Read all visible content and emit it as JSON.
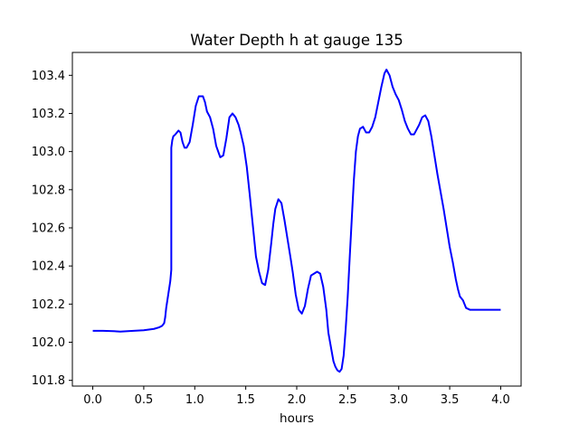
{
  "chart_data": {
    "type": "line",
    "title": "Water Depth h at gauge 135",
    "xlabel": "hours",
    "ylabel": "",
    "xlim": [
      -0.2,
      4.2
    ],
    "ylim": [
      101.77,
      103.52
    ],
    "xticks": [
      0.0,
      0.5,
      1.0,
      1.5,
      2.0,
      2.5,
      3.0,
      3.5,
      4.0
    ],
    "xtick_labels": [
      "0.0",
      "0.5",
      "1.0",
      "1.5",
      "2.0",
      "2.5",
      "3.0",
      "3.5",
      "4.0"
    ],
    "yticks": [
      101.8,
      102.0,
      102.2,
      102.4,
      102.6,
      102.8,
      103.0,
      103.2,
      103.4
    ],
    "ytick_labels": [
      "101.8",
      "102.0",
      "102.2",
      "102.4",
      "102.6",
      "102.8",
      "103.0",
      "103.2",
      "103.4"
    ],
    "grid": false,
    "legend": "none",
    "series": [
      {
        "color": "#0000ff",
        "x": [
          0.0,
          0.1,
          0.2,
          0.27,
          0.4,
          0.5,
          0.6,
          0.65,
          0.68,
          0.7,
          0.71,
          0.72,
          0.74,
          0.76,
          0.77,
          0.77,
          0.78,
          0.79,
          0.81,
          0.84,
          0.86,
          0.88,
          0.9,
          0.92,
          0.95,
          0.98,
          1.01,
          1.04,
          1.08,
          1.1,
          1.12,
          1.15,
          1.18,
          1.21,
          1.25,
          1.28,
          1.31,
          1.34,
          1.37,
          1.4,
          1.43,
          1.45,
          1.48,
          1.51,
          1.54,
          1.57,
          1.6,
          1.63,
          1.66,
          1.69,
          1.72,
          1.75,
          1.77,
          1.79,
          1.82,
          1.85,
          1.88,
          1.91,
          1.94,
          1.96,
          1.99,
          2.02,
          2.05,
          2.08,
          2.11,
          2.14,
          2.17,
          2.2,
          2.23,
          2.26,
          2.29,
          2.31,
          2.34,
          2.36,
          2.38,
          2.4,
          2.42,
          2.44,
          2.46,
          2.48,
          2.5,
          2.52,
          2.54,
          2.56,
          2.58,
          2.6,
          2.62,
          2.65,
          2.68,
          2.71,
          2.74,
          2.77,
          2.8,
          2.83,
          2.86,
          2.88,
          2.91,
          2.94,
          2.97,
          3.0,
          3.03,
          3.06,
          3.09,
          3.12,
          3.15,
          3.17,
          3.2,
          3.23,
          3.26,
          3.29,
          3.32,
          3.35,
          3.38,
          3.41,
          3.44,
          3.47,
          3.5,
          3.53,
          3.56,
          3.58,
          3.6,
          3.63,
          3.66,
          3.7,
          3.74,
          3.78,
          3.82,
          3.86,
          3.9,
          3.93,
          3.96,
          3.98,
          4.0
        ],
        "y": [
          102.06,
          102.06,
          102.058,
          102.056,
          102.06,
          102.063,
          102.07,
          102.078,
          102.086,
          102.1,
          102.13,
          102.18,
          102.25,
          102.32,
          102.38,
          103.02,
          103.06,
          103.08,
          103.09,
          103.11,
          103.1,
          103.05,
          103.02,
          103.02,
          103.05,
          103.14,
          103.24,
          103.29,
          103.29,
          103.26,
          103.21,
          103.18,
          103.12,
          103.03,
          102.97,
          102.98,
          103.07,
          103.18,
          103.2,
          103.18,
          103.14,
          103.1,
          103.03,
          102.92,
          102.77,
          102.61,
          102.45,
          102.37,
          102.31,
          102.3,
          102.38,
          102.52,
          102.62,
          102.7,
          102.75,
          102.73,
          102.64,
          102.54,
          102.44,
          102.37,
          102.25,
          102.17,
          102.15,
          102.19,
          102.28,
          102.35,
          102.36,
          102.37,
          102.36,
          102.29,
          102.17,
          102.05,
          101.96,
          101.9,
          101.87,
          101.852,
          101.845,
          101.86,
          101.93,
          102.07,
          102.24,
          102.45,
          102.65,
          102.85,
          103.0,
          103.08,
          103.12,
          103.13,
          103.1,
          103.1,
          103.13,
          103.18,
          103.26,
          103.34,
          103.41,
          103.43,
          103.4,
          103.34,
          103.3,
          103.27,
          103.22,
          103.16,
          103.12,
          103.09,
          103.09,
          103.11,
          103.14,
          103.18,
          103.19,
          103.16,
          103.08,
          102.98,
          102.88,
          102.79,
          102.7,
          102.6,
          102.5,
          102.42,
          102.33,
          102.28,
          102.24,
          102.22,
          102.18,
          102.17,
          102.17,
          102.17,
          102.17,
          102.17,
          102.17,
          102.17,
          102.17,
          102.17,
          102.17
        ]
      }
    ]
  }
}
